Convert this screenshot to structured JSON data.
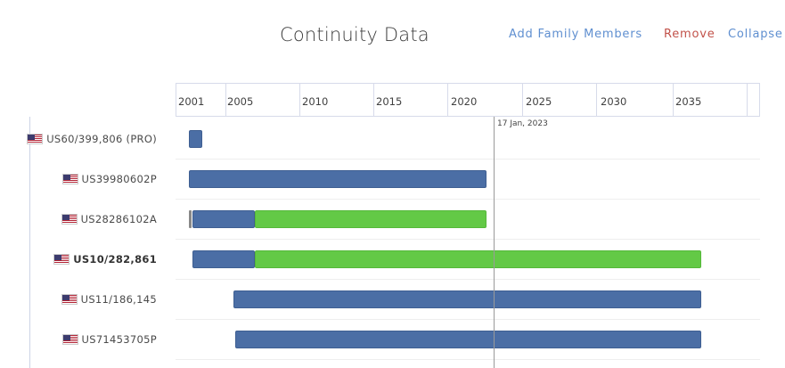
{
  "header": {
    "title": "Continuity Data",
    "add_label": "Add Family Members",
    "remove_label": "Remove",
    "collapse_label": "Collapse"
  },
  "timeline": {
    "ticks": [
      "2001",
      "2005",
      "2010",
      "2015",
      "2020",
      "2025",
      "2030",
      "2035"
    ],
    "today_label": "17 Jan, 2023"
  },
  "rows": [
    {
      "label": "US60/399,806 (PRO)",
      "bold": false
    },
    {
      "label": "US39980602P",
      "bold": false
    },
    {
      "label": "US28286102A",
      "bold": false
    },
    {
      "label": "US10/282,861",
      "bold": true
    },
    {
      "label": "US11/186,145",
      "bold": false
    },
    {
      "label": "US71453705P",
      "bold": false
    }
  ],
  "colors": {
    "pending": "#4b6ea5",
    "active": "#63c946",
    "link_blue": "#5f8fd0",
    "link_red": "#c2524a"
  }
}
